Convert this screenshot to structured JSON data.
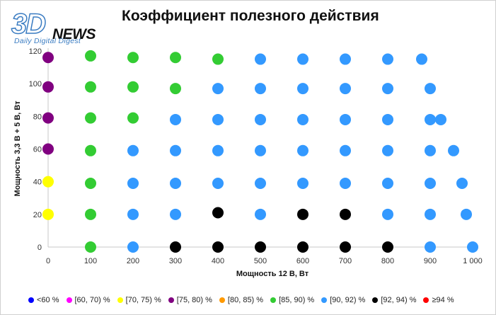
{
  "logo": {
    "brand_main": "3D",
    "brand_word": "NEWS",
    "tagline": "Daily Digital Digest"
  },
  "chart_data": {
    "type": "scatter",
    "title": "Коэффициент полезного действия",
    "xlabel": "Мощность 12 В, Вт",
    "ylabel": "Мощность 3,3 В + 5 В, Вт",
    "xlim": [
      0,
      1000
    ],
    "ylim": [
      0,
      120
    ],
    "x_ticks": [
      0,
      100,
      200,
      300,
      400,
      500,
      600,
      700,
      800,
      900,
      1000
    ],
    "x_tick_labels": [
      "0",
      "100",
      "200",
      "300",
      "400",
      "500",
      "600",
      "700",
      "800",
      "900",
      "1 000"
    ],
    "y_ticks": [
      0,
      20,
      40,
      60,
      80,
      100,
      120
    ],
    "y_tick_labels": [
      "0",
      "20",
      "40",
      "60",
      "80",
      "100",
      "120"
    ],
    "grid": false,
    "legend_position": "bottom",
    "series": [
      {
        "name": "<60 %",
        "color": "#0000ff",
        "points": []
      },
      {
        "name": "[60, 70) %",
        "color": "#ff00ff",
        "points": []
      },
      {
        "name": "[70, 75) %",
        "color": "#ffff00",
        "points": [
          [
            0,
            40
          ],
          [
            0,
            20
          ]
        ]
      },
      {
        "name": "[75, 80) %",
        "color": "#800080",
        "points": [
          [
            0,
            116
          ],
          [
            0,
            98
          ],
          [
            0,
            79
          ],
          [
            0,
            60
          ]
        ]
      },
      {
        "name": "[80, 85) %",
        "color": "#ff9900",
        "points": []
      },
      {
        "name": "[85, 90) %",
        "color": "#33cc33",
        "points": [
          [
            100,
            117
          ],
          [
            200,
            116
          ],
          [
            300,
            116
          ],
          [
            400,
            115
          ],
          [
            100,
            98
          ],
          [
            200,
            98
          ],
          [
            300,
            97
          ],
          [
            100,
            79
          ],
          [
            200,
            79
          ],
          [
            100,
            59
          ],
          [
            100,
            39
          ],
          [
            100,
            20
          ],
          [
            100,
            0
          ]
        ]
      },
      {
        "name": "[90, 92) %",
        "color": "#3399ff",
        "points": [
          [
            500,
            115
          ],
          [
            600,
            115
          ],
          [
            700,
            115
          ],
          [
            800,
            115
          ],
          [
            880,
            115
          ],
          [
            400,
            97
          ],
          [
            500,
            97
          ],
          [
            600,
            97
          ],
          [
            700,
            97
          ],
          [
            800,
            97
          ],
          [
            900,
            97
          ],
          [
            300,
            78
          ],
          [
            400,
            78
          ],
          [
            500,
            78
          ],
          [
            600,
            78
          ],
          [
            700,
            78
          ],
          [
            800,
            78
          ],
          [
            900,
            78
          ],
          [
            925,
            78
          ],
          [
            200,
            59
          ],
          [
            300,
            59
          ],
          [
            400,
            59
          ],
          [
            500,
            59
          ],
          [
            600,
            59
          ],
          [
            700,
            59
          ],
          [
            800,
            59
          ],
          [
            900,
            59
          ],
          [
            955,
            59
          ],
          [
            200,
            39
          ],
          [
            300,
            39
          ],
          [
            400,
            39
          ],
          [
            500,
            39
          ],
          [
            600,
            39
          ],
          [
            700,
            39
          ],
          [
            800,
            39
          ],
          [
            900,
            39
          ],
          [
            975,
            39
          ],
          [
            200,
            20
          ],
          [
            300,
            20
          ],
          [
            500,
            20
          ],
          [
            800,
            20
          ],
          [
            900,
            20
          ],
          [
            985,
            20
          ],
          [
            200,
            0
          ],
          [
            900,
            0
          ],
          [
            1000,
            0
          ]
        ]
      },
      {
        "name": "[92, 94) %",
        "color": "#000000",
        "points": [
          [
            400,
            21
          ],
          [
            600,
            20
          ],
          [
            700,
            20
          ],
          [
            300,
            0
          ],
          [
            400,
            0
          ],
          [
            500,
            0
          ],
          [
            600,
            0
          ],
          [
            700,
            0
          ],
          [
            800,
            0
          ]
        ]
      },
      {
        "name": "≥94 %",
        "color": "#ff0000",
        "points": []
      }
    ]
  }
}
